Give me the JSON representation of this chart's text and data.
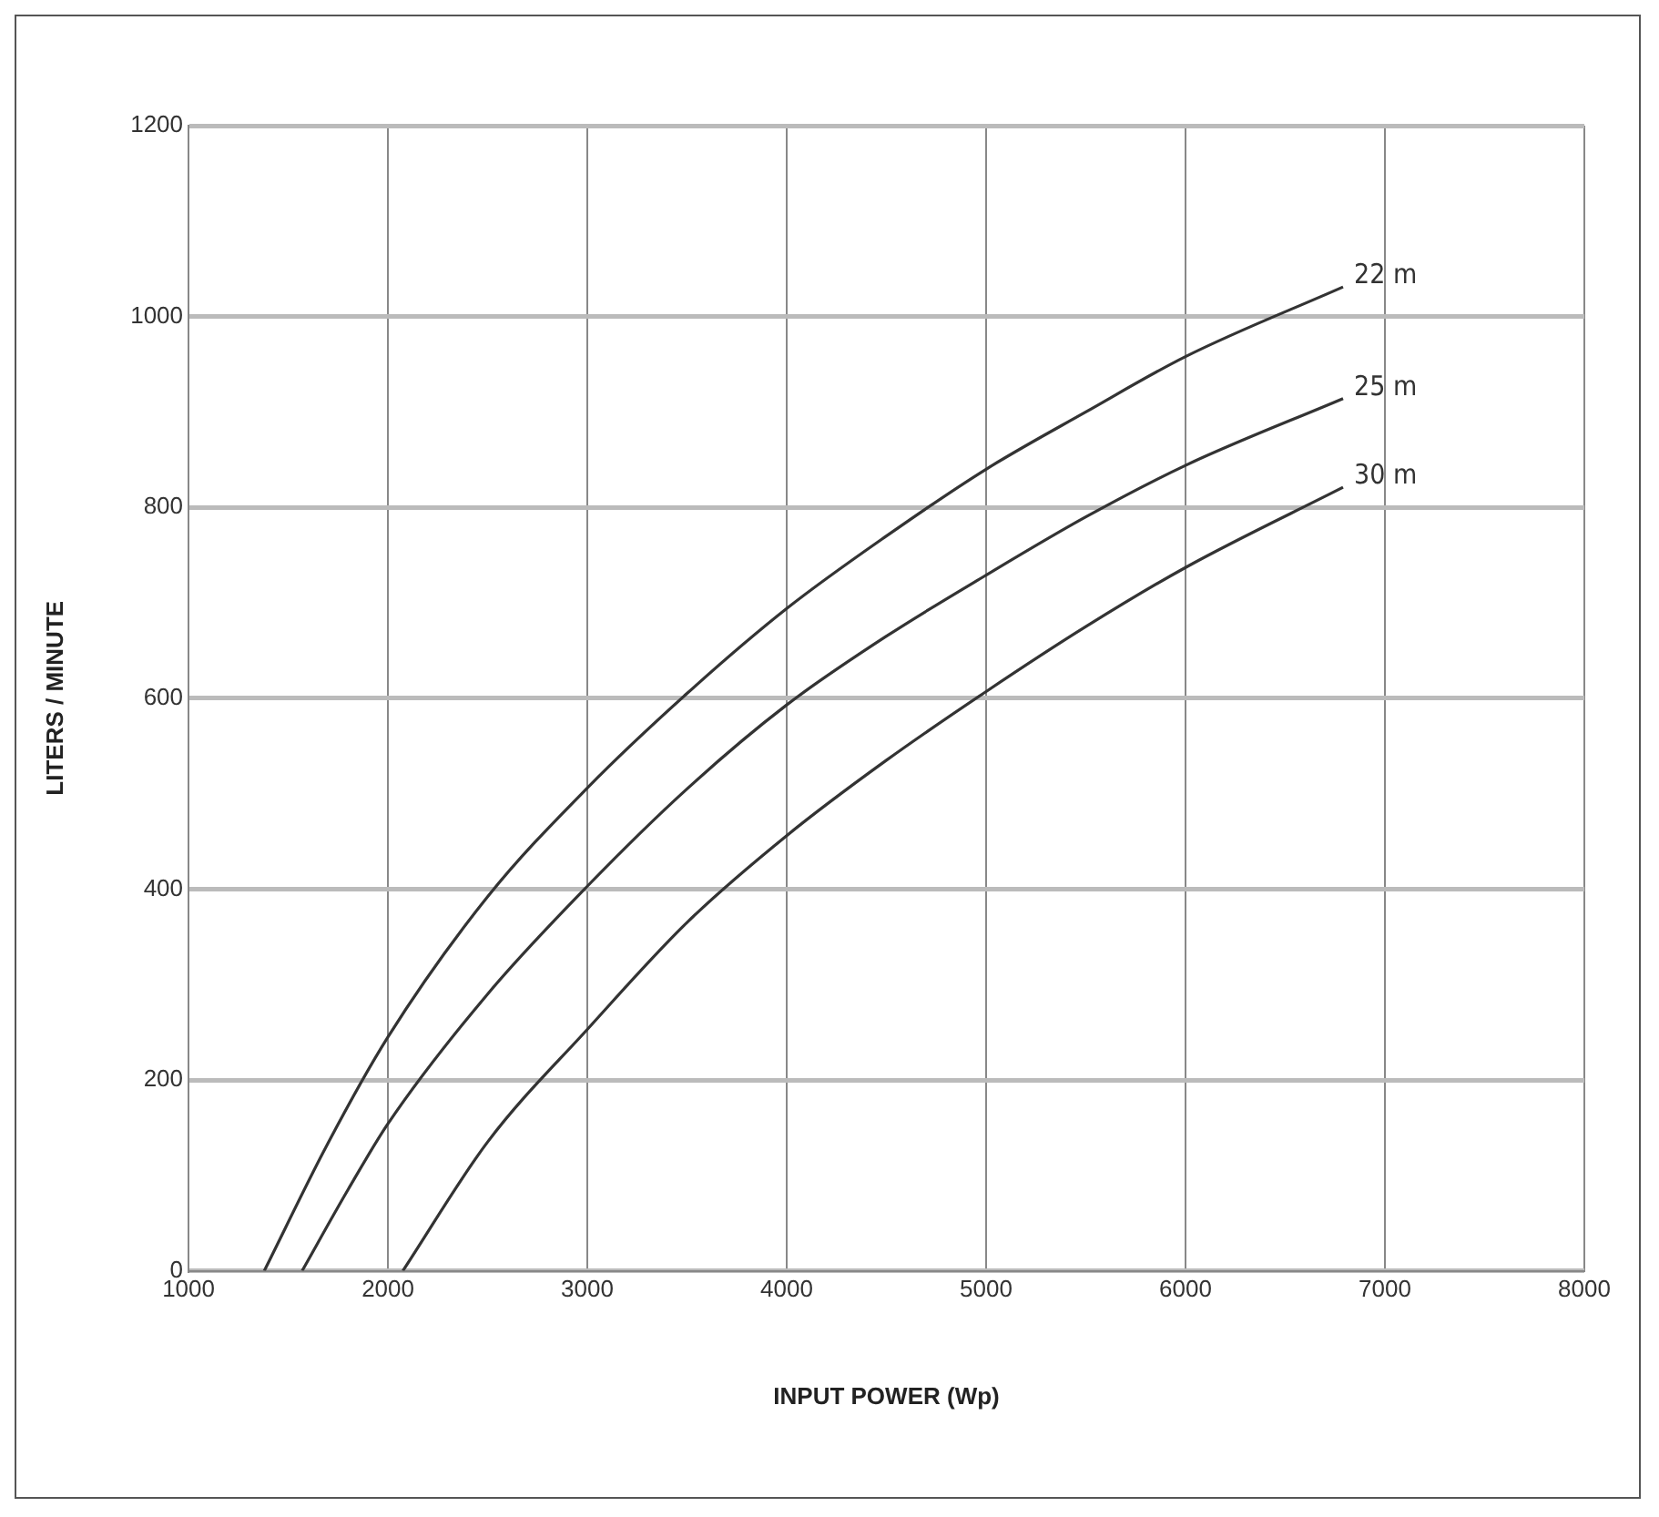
{
  "chart_data": {
    "type": "line",
    "xlabel": "INPUT POWER (Wp)",
    "ylabel": "LITERS / MINUTE",
    "xlim": [
      1000,
      8000
    ],
    "xticks": [
      1000,
      2000,
      3000,
      4000,
      5000,
      6000,
      7000,
      8000
    ],
    "ylim": [
      0,
      1200
    ],
    "yticks": [
      0,
      200,
      400,
      600,
      800,
      1000,
      1200
    ],
    "grid": true,
    "legend": false,
    "marker": "none",
    "line_style": "solid",
    "series": [
      {
        "name": "22 m",
        "color": "#333333",
        "x": [
          1380,
          1700,
          2000,
          2500,
          3000,
          3500,
          4000,
          4500,
          5000,
          5500,
          6000,
          6790
        ],
        "values": [
          0,
          134,
          245,
          392,
          506,
          605,
          694,
          770,
          840,
          900,
          958,
          1031
        ]
      },
      {
        "name": "25 m",
        "color": "#333333",
        "x": [
          1570,
          1800,
          2000,
          2500,
          3000,
          3500,
          4000,
          4500,
          5000,
          5500,
          6000,
          6790
        ],
        "values": [
          0,
          85,
          154,
          290,
          403,
          505,
          593,
          665,
          729,
          790,
          844,
          914
        ]
      },
      {
        "name": "30 m",
        "color": "#333333",
        "x": [
          2075,
          2500,
          3000,
          3500,
          4000,
          4500,
          5000,
          5500,
          6000,
          6790
        ],
        "values": [
          0,
          135,
          253,
          365,
          456,
          535,
          607,
          675,
          737,
          821
        ]
      }
    ]
  }
}
